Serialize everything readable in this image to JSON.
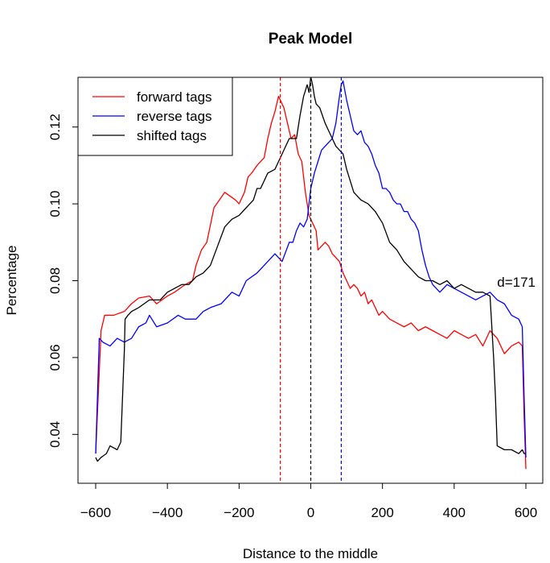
{
  "chart_data": {
    "type": "line",
    "title": "Peak Model",
    "xlabel": "Distance to the middle",
    "ylabel": "Percentage",
    "xlim": [
      -600,
      600
    ],
    "ylim": [
      0.03,
      0.13
    ],
    "xticks": [
      -600,
      -400,
      -200,
      0,
      200,
      400,
      600
    ],
    "xtick_labels": [
      "−600",
      "−400",
      "−200",
      "0",
      "200",
      "400",
      "600"
    ],
    "yticks": [
      0.04,
      0.06,
      0.08,
      0.1,
      0.12
    ],
    "ytick_labels": [
      "0.04",
      "0.06",
      "0.08",
      "0.10",
      "0.12"
    ],
    "grid": false,
    "legend_position": "top-left",
    "annotation": "d=171",
    "series": [
      {
        "name": "forward tags",
        "color": "#ff0000",
        "x": [
          -600,
          -585,
          -575,
          -550,
          -520,
          -500,
          -480,
          -450,
          -430,
          -400,
          -380,
          -350,
          -330,
          -320,
          -305,
          -290,
          -270,
          -255,
          -240,
          -225,
          -210,
          -200,
          -185,
          -175,
          -165,
          -150,
          -130,
          -120,
          -110,
          -100,
          -90,
          -85,
          -75,
          -65,
          -55,
          -45,
          -35,
          -25,
          -15,
          -5,
          5,
          15,
          20,
          30,
          40,
          50,
          60,
          70,
          80,
          90,
          100,
          110,
          120,
          130,
          140,
          150,
          160,
          170,
          180,
          190,
          200,
          220,
          240,
          260,
          280,
          300,
          320,
          340,
          360,
          380,
          400,
          420,
          440,
          460,
          480,
          500,
          520,
          540,
          560,
          580,
          590,
          595,
          600
        ],
        "y": [
          0.035,
          0.067,
          0.071,
          0.071,
          0.072,
          0.074,
          0.0755,
          0.076,
          0.074,
          0.076,
          0.077,
          0.079,
          0.08,
          0.084,
          0.088,
          0.09,
          0.099,
          0.101,
          0.103,
          0.102,
          0.101,
          0.1,
          0.103,
          0.107,
          0.108,
          0.11,
          0.112,
          0.117,
          0.121,
          0.124,
          0.128,
          0.127,
          0.125,
          0.121,
          0.117,
          0.118,
          0.113,
          0.111,
          0.103,
          0.097,
          0.095,
          0.093,
          0.088,
          0.089,
          0.09,
          0.089,
          0.087,
          0.086,
          0.085,
          0.082,
          0.08,
          0.078,
          0.079,
          0.078,
          0.076,
          0.077,
          0.074,
          0.075,
          0.073,
          0.071,
          0.072,
          0.07,
          0.069,
          0.068,
          0.069,
          0.067,
          0.068,
          0.067,
          0.066,
          0.065,
          0.067,
          0.066,
          0.065,
          0.066,
          0.063,
          0.067,
          0.065,
          0.061,
          0.063,
          0.064,
          0.063,
          0.045,
          0.031
        ]
      },
      {
        "name": "reverse tags",
        "color": "#0000ff",
        "x": [
          -600,
          -590,
          -580,
          -560,
          -540,
          -520,
          -500,
          -480,
          -460,
          -450,
          -430,
          -400,
          -370,
          -350,
          -320,
          -300,
          -280,
          -250,
          -220,
          -200,
          -180,
          -150,
          -120,
          -100,
          -80,
          -60,
          -50,
          -40,
          -30,
          -20,
          -10,
          0,
          10,
          20,
          30,
          40,
          50,
          60,
          70,
          80,
          85,
          90,
          100,
          110,
          120,
          130,
          140,
          150,
          160,
          170,
          180,
          190,
          200,
          210,
          220,
          230,
          240,
          250,
          260,
          270,
          280,
          290,
          300,
          310,
          320,
          330,
          340,
          350,
          360,
          380,
          400,
          420,
          440,
          460,
          480,
          500,
          520,
          540,
          560,
          580,
          590,
          595,
          600
        ],
        "y": [
          0.035,
          0.065,
          0.064,
          0.063,
          0.065,
          0.064,
          0.065,
          0.068,
          0.069,
          0.071,
          0.068,
          0.069,
          0.071,
          0.07,
          0.07,
          0.072,
          0.073,
          0.074,
          0.077,
          0.076,
          0.08,
          0.082,
          0.085,
          0.087,
          0.085,
          0.09,
          0.09,
          0.093,
          0.095,
          0.094,
          0.096,
          0.104,
          0.108,
          0.111,
          0.114,
          0.115,
          0.116,
          0.117,
          0.121,
          0.128,
          0.131,
          0.132,
          0.127,
          0.123,
          0.119,
          0.118,
          0.119,
          0.116,
          0.115,
          0.113,
          0.11,
          0.108,
          0.104,
          0.104,
          0.103,
          0.101,
          0.1,
          0.1,
          0.098,
          0.098,
          0.096,
          0.095,
          0.093,
          0.088,
          0.084,
          0.081,
          0.079,
          0.078,
          0.077,
          0.079,
          0.078,
          0.077,
          0.076,
          0.075,
          0.076,
          0.077,
          0.075,
          0.074,
          0.071,
          0.07,
          0.068,
          0.05,
          0.034
        ]
      },
      {
        "name": "shifted tags",
        "color": "#000000",
        "x": [
          -600,
          -595,
          -585,
          -570,
          -560,
          -540,
          -530,
          -525,
          -520,
          -518,
          -510,
          -500,
          -480,
          -450,
          -420,
          -400,
          -380,
          -360,
          -340,
          -320,
          -300,
          -280,
          -260,
          -240,
          -220,
          -200,
          -180,
          -160,
          -150,
          -140,
          -120,
          -100,
          -80,
          -60,
          -40,
          -30,
          -20,
          -10,
          -5,
          0,
          5,
          10,
          15,
          25,
          40,
          50,
          60,
          70,
          80,
          90,
          100,
          120,
          140,
          160,
          180,
          200,
          220,
          240,
          260,
          280,
          300,
          320,
          340,
          360,
          380,
          400,
          420,
          440,
          460,
          480,
          500,
          505,
          510,
          515,
          520,
          540,
          560,
          580,
          590,
          595,
          600
        ],
        "y": [
          0.034,
          0.033,
          0.034,
          0.035,
          0.037,
          0.036,
          0.038,
          0.05,
          0.062,
          0.07,
          0.071,
          0.072,
          0.073,
          0.075,
          0.075,
          0.077,
          0.078,
          0.079,
          0.079,
          0.081,
          0.082,
          0.084,
          0.089,
          0.094,
          0.096,
          0.097,
          0.099,
          0.101,
          0.104,
          0.104,
          0.108,
          0.109,
          0.113,
          0.117,
          0.117,
          0.123,
          0.128,
          0.131,
          0.129,
          0.133,
          0.131,
          0.128,
          0.126,
          0.125,
          0.121,
          0.119,
          0.117,
          0.115,
          0.114,
          0.113,
          0.109,
          0.103,
          0.101,
          0.1,
          0.098,
          0.095,
          0.09,
          0.088,
          0.085,
          0.083,
          0.081,
          0.08,
          0.08,
          0.079,
          0.08,
          0.078,
          0.079,
          0.078,
          0.077,
          0.077,
          0.076,
          0.068,
          0.06,
          0.05,
          0.037,
          0.036,
          0.036,
          0.035,
          0.036,
          0.035,
          0.035
        ]
      }
    ],
    "vlines": [
      {
        "x": -85,
        "color": "#ff0000",
        "style": "dashed"
      },
      {
        "x": 0,
        "color": "#000000",
        "style": "dashed"
      },
      {
        "x": 85,
        "color": "#0000ff",
        "style": "dashed"
      }
    ]
  }
}
